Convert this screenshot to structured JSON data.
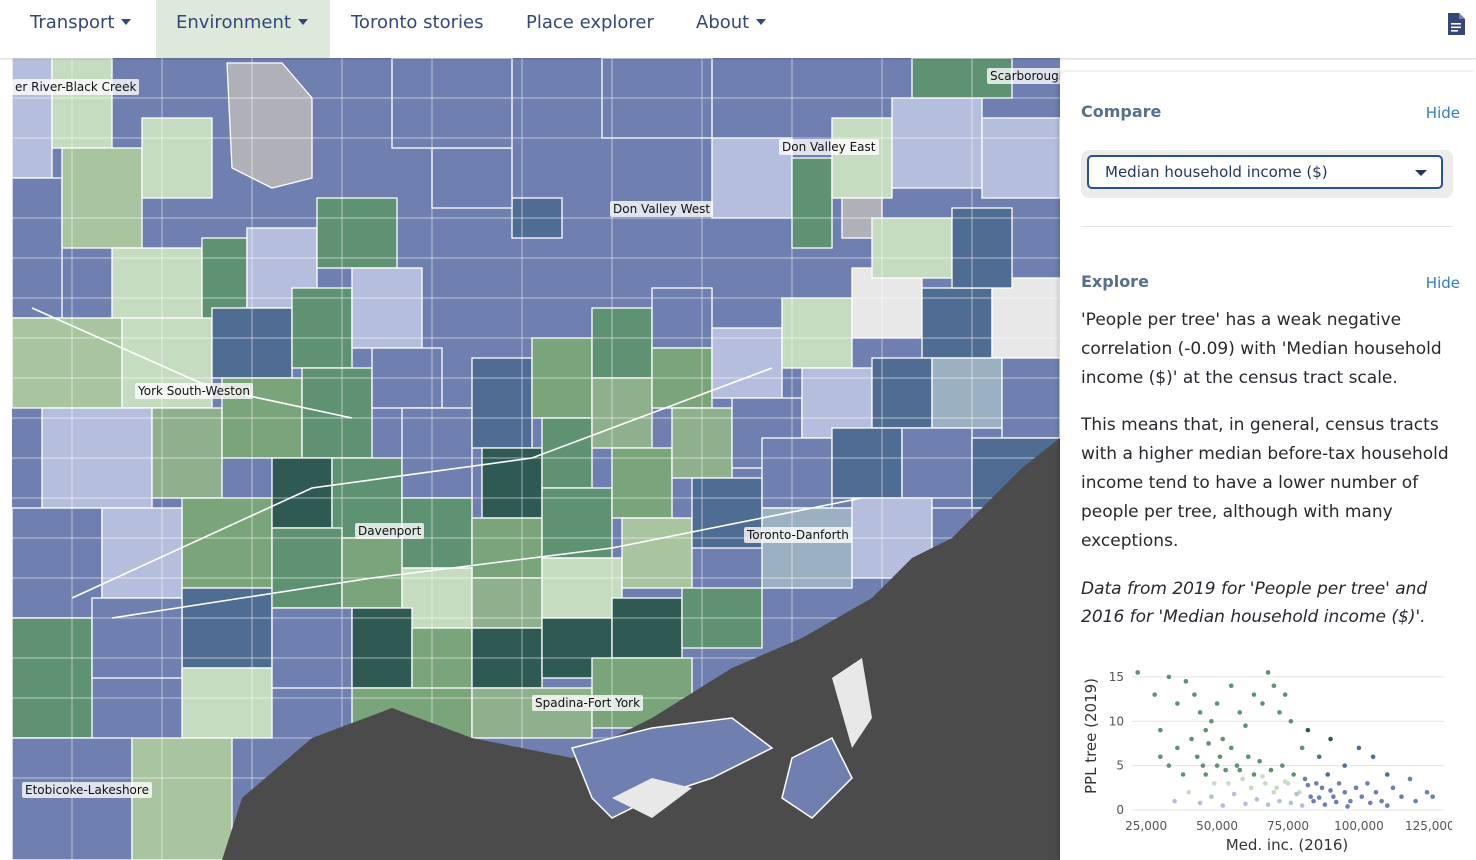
{
  "nav": {
    "items": [
      {
        "label": "Transport",
        "dropdown": true
      },
      {
        "label": "Environment",
        "dropdown": true,
        "active": true
      },
      {
        "label": "Toronto stories",
        "dropdown": false
      },
      {
        "label": "Place explorer",
        "dropdown": false
      },
      {
        "label": "About",
        "dropdown": true
      }
    ],
    "doc_icon": "document-icon"
  },
  "map": {
    "labels": [
      "er River-Black Creek",
      "Scarborough",
      "Don Valley East",
      "Don Valley West",
      "York South-Weston",
      "Davenport",
      "Toronto-Danforth",
      "Spadina-Fort York",
      "Etobicoke-Lakeshore"
    ],
    "colors": {
      "dark_green": "#2f5a54",
      "mid_green": "#5f9173",
      "light_green": "#c6dcc0",
      "slate_blue": "#4f6c92",
      "purple_blue": "#6f7fb0",
      "pale_lavender": "#b5bedc",
      "water": "#4b4b4b",
      "no_data": "#e8e8e8"
    }
  },
  "panel": {
    "compare": {
      "heading": "Compare",
      "hide_label": "Hide",
      "selected": "Median household income ($)"
    },
    "explore": {
      "heading": "Explore",
      "hide_label": "Hide",
      "p1": "'People per tree' has a weak negative correlation (-0.09) with 'Median household income ($)' at the census tract scale.",
      "p2": "This means that, in general, census tracts with a higher median before-tax household income tend to have a lower number of people per tree, although with many exceptions.",
      "p3": "Data from 2019 for 'People per tree' and 2016 for 'Median household income ($)'."
    }
  },
  "chart_data": {
    "type": "scatter",
    "title": "",
    "xlabel": "Med. inc. (2016)",
    "ylabel": "PPL tree (2019)",
    "xlim": [
      20000,
      130000
    ],
    "ylim": [
      0,
      16
    ],
    "x_ticks": [
      "25,000",
      "50,000",
      "75,000",
      "100,000",
      "125,000"
    ],
    "y_ticks": [
      "0",
      "5",
      "10",
      "15"
    ],
    "grid": true,
    "colors": [
      "#2f5a54",
      "#5f9173",
      "#c6dcc0",
      "#b5bedc",
      "#6f7fb0",
      "#4f6c92"
    ],
    "points": [
      [
        22000,
        15.5
      ],
      [
        28000,
        13
      ],
      [
        30000,
        9
      ],
      [
        33000,
        15
      ],
      [
        36000,
        12
      ],
      [
        39000,
        14.5
      ],
      [
        42000,
        13
      ],
      [
        44000,
        11
      ],
      [
        46000,
        9
      ],
      [
        48000,
        10
      ],
      [
        50000,
        12
      ],
      [
        52000,
        8
      ],
      [
        55000,
        14
      ],
      [
        58000,
        11
      ],
      [
        60000,
        9.5
      ],
      [
        63000,
        13
      ],
      [
        66000,
        12
      ],
      [
        68000,
        15.5
      ],
      [
        70000,
        14
      ],
      [
        72000,
        11
      ],
      [
        74000,
        13
      ],
      [
        76000,
        10
      ],
      [
        80000,
        7
      ],
      [
        82000,
        9
      ],
      [
        86000,
        6
      ],
      [
        90000,
        8
      ],
      [
        95000,
        5
      ],
      [
        100000,
        7
      ],
      [
        105000,
        6
      ],
      [
        110000,
        4
      ],
      [
        118000,
        3.5
      ],
      [
        124000,
        2
      ],
      [
        30000,
        6
      ],
      [
        33000,
        5
      ],
      [
        36000,
        7
      ],
      [
        38000,
        4
      ],
      [
        41000,
        8
      ],
      [
        43000,
        6
      ],
      [
        45000,
        5
      ],
      [
        47000,
        7.5
      ],
      [
        49000,
        3
      ],
      [
        51000,
        6
      ],
      [
        53000,
        4.5
      ],
      [
        55000,
        7
      ],
      [
        57000,
        5
      ],
      [
        59000,
        3.5
      ],
      [
        61000,
        6
      ],
      [
        63000,
        4
      ],
      [
        65000,
        5.5
      ],
      [
        67000,
        3
      ],
      [
        69000,
        4.5
      ],
      [
        71000,
        2.5
      ],
      [
        73000,
        5
      ],
      [
        75000,
        3
      ],
      [
        77000,
        4
      ],
      [
        79000,
        2
      ],
      [
        81000,
        3.5
      ],
      [
        83000,
        1.5
      ],
      [
        85000,
        3
      ],
      [
        87000,
        2.5
      ],
      [
        89000,
        4
      ],
      [
        91000,
        1.5
      ],
      [
        93000,
        3
      ],
      [
        95000,
        2
      ],
      [
        97000,
        1
      ],
      [
        99000,
        2.5
      ],
      [
        101000,
        1.5
      ],
      [
        103000,
        3
      ],
      [
        106000,
        2
      ],
      [
        108000,
        1
      ],
      [
        112000,
        2.5
      ],
      [
        115000,
        1.5
      ],
      [
        120000,
        1
      ],
      [
        126000,
        1.5
      ],
      [
        35000,
        1
      ],
      [
        40000,
        2
      ],
      [
        44000,
        0.8
      ],
      [
        48000,
        1.5
      ],
      [
        52000,
        0.5
      ],
      [
        56000,
        1.8
      ],
      [
        60000,
        0.7
      ],
      [
        64000,
        1.2
      ],
      [
        68000,
        0.6
      ],
      [
        72000,
        1
      ],
      [
        76000,
        0.8
      ],
      [
        80000,
        0.5
      ],
      [
        84000,
        1
      ],
      [
        88000,
        0.6
      ],
      [
        92000,
        0.9
      ],
      [
        96000,
        0.4
      ],
      [
        104000,
        0.8
      ],
      [
        110000,
        0.5
      ],
      [
        46000,
        4
      ],
      [
        50000,
        5
      ],
      [
        54000,
        3
      ],
      [
        58000,
        4.5
      ],
      [
        62000,
        2.5
      ],
      [
        66000,
        3.8
      ],
      [
        70000,
        2
      ],
      [
        74000,
        3.2
      ],
      [
        78000,
        1.8
      ],
      [
        82000,
        2.8
      ],
      [
        86000,
        1.4
      ],
      [
        90000,
        2.2
      ]
    ]
  }
}
